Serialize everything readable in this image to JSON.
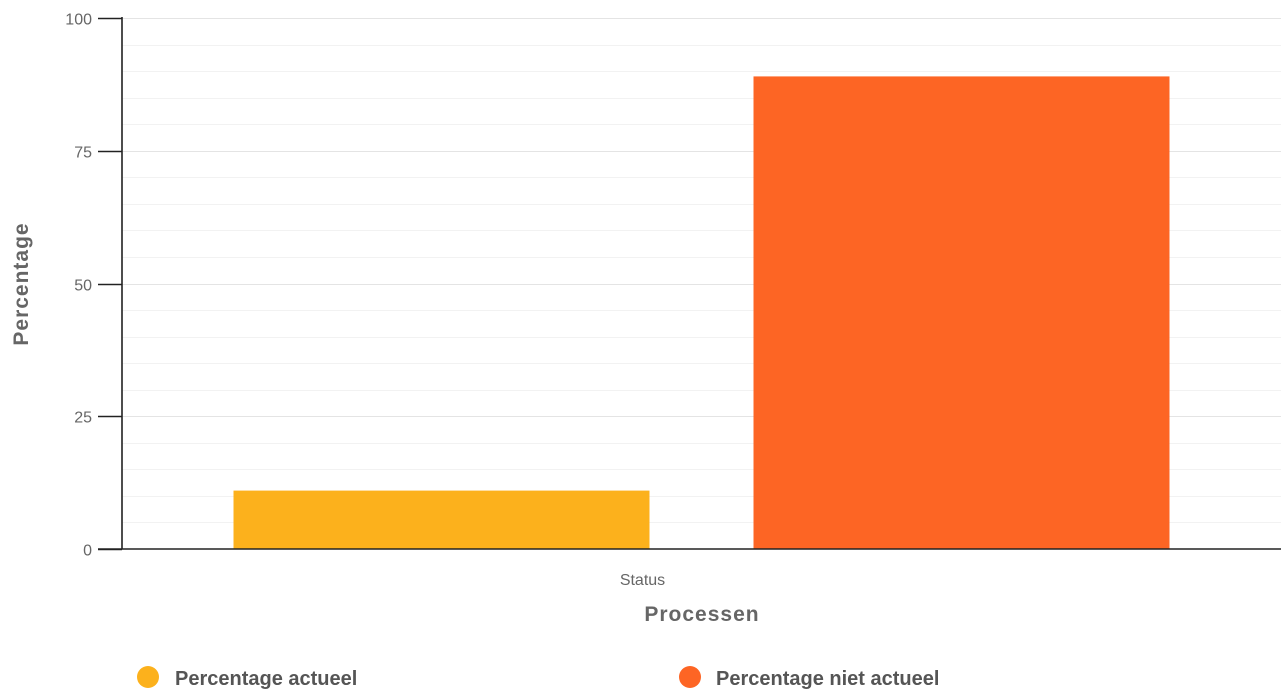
{
  "chart_data": {
    "type": "bar",
    "categories": [
      "Status"
    ],
    "series": [
      {
        "name": "Percentage actueel",
        "values": [
          11
        ],
        "color": "#fcb11c"
      },
      {
        "name": "Percentage niet actueel",
        "values": [
          89
        ],
        "color": "#fd6524"
      }
    ],
    "xlabel": "Processen",
    "ylabel": "Percentage",
    "ylim": [
      0,
      100
    ],
    "yticks": [
      0,
      25,
      50,
      75,
      100
    ],
    "grid": true,
    "legend": "bottom"
  }
}
